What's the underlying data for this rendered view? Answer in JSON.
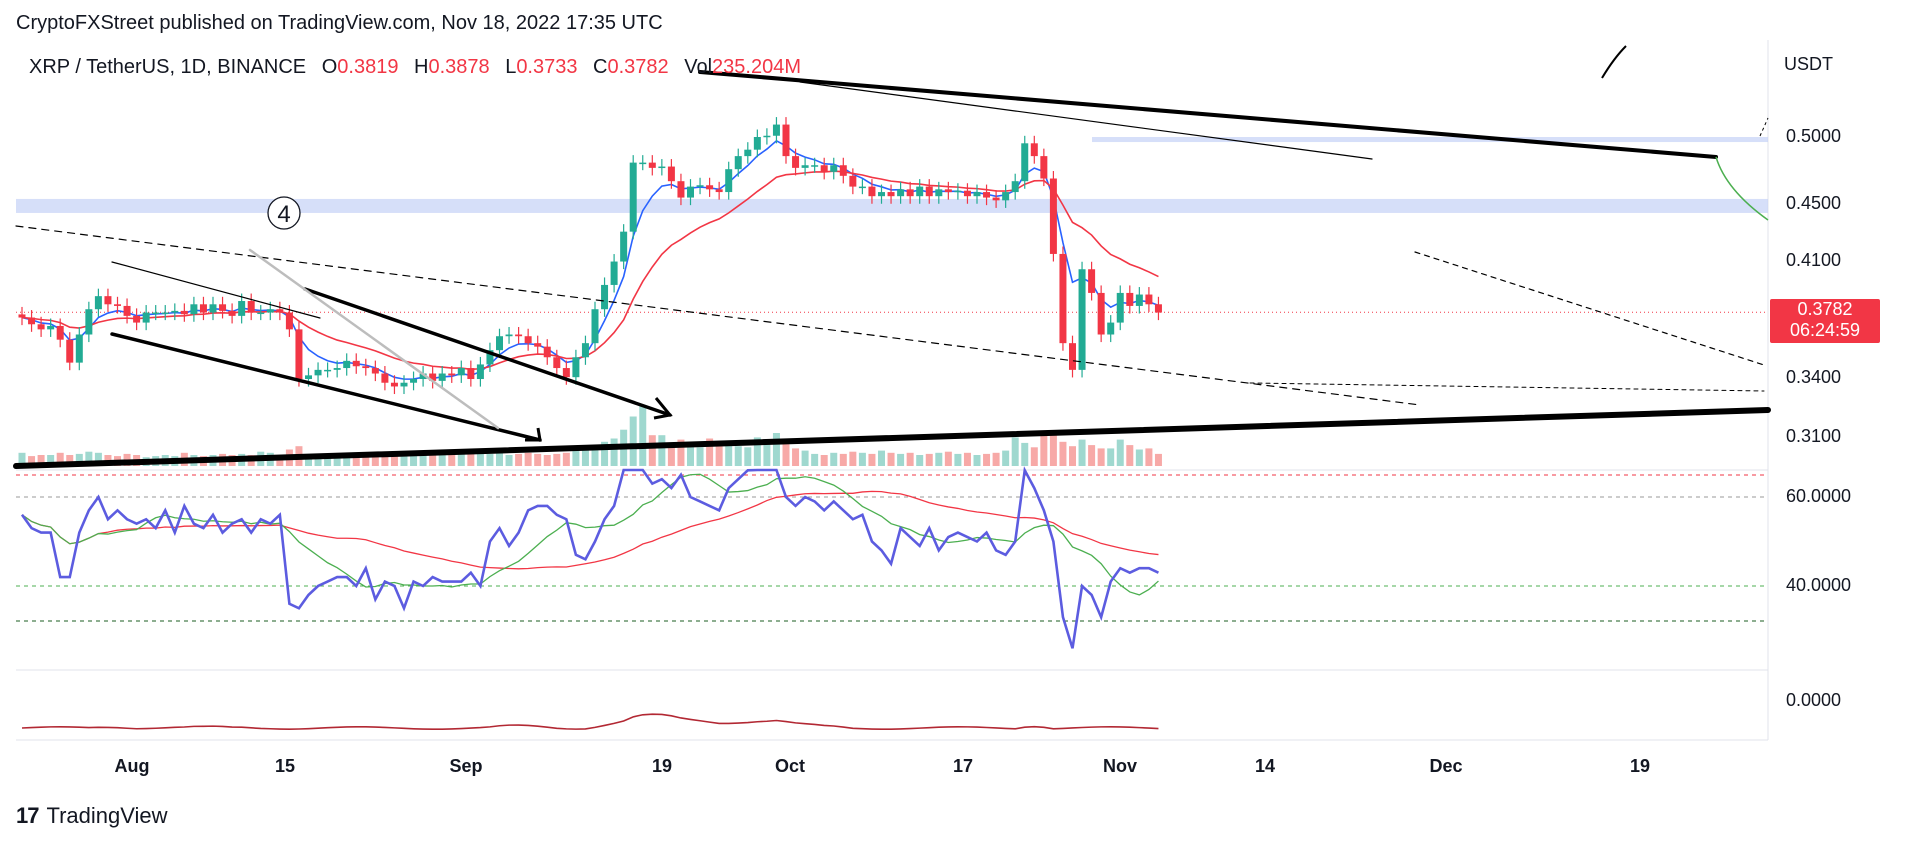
{
  "header": {
    "published_by": "CryptoFXStreet published on TradingView.com, Nov 18, 2022 17:35 UTC"
  },
  "legend": {
    "symbol": "XRP / TetherUS, 1D, BINANCE",
    "open_label": "O",
    "open": "0.3819",
    "high_label": "H",
    "high": "0.3878",
    "low_label": "L",
    "low": "0.3733",
    "close_label": "C",
    "close": "0.3782",
    "vol_label": "Vol",
    "vol": "235.204M"
  },
  "price_axis": {
    "currency": "USDT",
    "ticks": [
      "0.5000",
      "0.4500",
      "0.4100",
      "0.3400",
      "0.3100"
    ]
  },
  "rsi_axis": {
    "ticks": [
      "60.0000",
      "40.0000"
    ]
  },
  "osc_axis": {
    "ticks": [
      "0.0000"
    ]
  },
  "time_axis": {
    "ticks": [
      "Aug",
      "15",
      "Sep",
      "19",
      "Oct",
      "17",
      "Nov",
      "14",
      "Dec",
      "19"
    ]
  },
  "last_price": {
    "price": "0.3782",
    "countdown": "06:24:59"
  },
  "annotation": {
    "wave_label": "4"
  },
  "brand": {
    "name": "TradingView"
  },
  "colors": {
    "up": "#22ab94",
    "down": "#f23645",
    "ema_fast": "#2962ff",
    "ema_slow": "#f23645",
    "rsi": "#5c5ce0",
    "rsi_signal_fast": "#4caf50",
    "rsi_signal_slow": "#f23645",
    "support_zone": "#c5d1f6",
    "oscillator": "#b22833"
  },
  "chart_data": {
    "type": "candlestick",
    "symbol": "XRP / TetherUS",
    "timeframe": "1D",
    "exchange": "BINANCE",
    "x_ticks": [
      "Aug",
      "15",
      "Sep",
      "19",
      "Oct",
      "17",
      "Nov",
      "14",
      "Dec",
      "19"
    ],
    "y_ticks": [
      0.5,
      0.45,
      0.41,
      0.34,
      0.31
    ],
    "y_scale": "log",
    "last_close": 0.3782,
    "ohlc_last": {
      "open": 0.3819,
      "high": 0.3878,
      "low": 0.3733,
      "close": 0.3782
    },
    "support_zones": [
      [
        0.443,
        0.453
      ],
      [
        0.496,
        0.5
      ]
    ],
    "rsi_levels": [
      60,
      40
    ],
    "closes": [
      0.375,
      0.371,
      0.368,
      0.37,
      0.362,
      0.349,
      0.365,
      0.38,
      0.388,
      0.383,
      0.382,
      0.376,
      0.372,
      0.378,
      0.378,
      0.378,
      0.379,
      0.377,
      0.383,
      0.378,
      0.383,
      0.379,
      0.376,
      0.385,
      0.378,
      0.378,
      0.38,
      0.378,
      0.368,
      0.34,
      0.342,
      0.345,
      0.345,
      0.346,
      0.35,
      0.347,
      0.346,
      0.343,
      0.338,
      0.336,
      0.338,
      0.34,
      0.343,
      0.339,
      0.343,
      0.342,
      0.346,
      0.34,
      0.348,
      0.356,
      0.364,
      0.365,
      0.364,
      0.36,
      0.358,
      0.352,
      0.346,
      0.341,
      0.352,
      0.36,
      0.38,
      0.395,
      0.41,
      0.43,
      0.48,
      0.48,
      0.476,
      0.477,
      0.466,
      0.454,
      0.462,
      0.463,
      0.46,
      0.458,
      0.475,
      0.485,
      0.49,
      0.5,
      0.501,
      0.51,
      0.485,
      0.476,
      0.478,
      0.478,
      0.473,
      0.478,
      0.47,
      0.462,
      0.462,
      0.455,
      0.458,
      0.455,
      0.46,
      0.455,
      0.462,
      0.455,
      0.46,
      0.458,
      0.459,
      0.455,
      0.458,
      0.454,
      0.452,
      0.458,
      0.466,
      0.495,
      0.485,
      0.468,
      0.415,
      0.36,
      0.345,
      0.405,
      0.39,
      0.365,
      0.372,
      0.39,
      0.382,
      0.389,
      0.383,
      0.378
    ],
    "volumes": [
      0.12,
      0.09,
      0.1,
      0.1,
      0.12,
      0.1,
      0.11,
      0.13,
      0.12,
      0.1,
      0.09,
      0.11,
      0.1,
      0.08,
      0.09,
      0.1,
      0.09,
      0.12,
      0.1,
      0.09,
      0.1,
      0.11,
      0.1,
      0.11,
      0.1,
      0.13,
      0.12,
      0.1,
      0.15,
      0.18,
      0.1,
      0.09,
      0.1,
      0.09,
      0.1,
      0.11,
      0.1,
      0.1,
      0.09,
      0.1,
      0.12,
      0.11,
      0.1,
      0.11,
      0.12,
      0.1,
      0.13,
      0.14,
      0.12,
      0.11,
      0.12,
      0.1,
      0.11,
      0.12,
      0.11,
      0.1,
      0.11,
      0.12,
      0.14,
      0.16,
      0.18,
      0.22,
      0.25,
      0.33,
      0.45,
      0.55,
      0.28,
      0.28,
      0.2,
      0.24,
      0.19,
      0.17,
      0.25,
      0.21,
      0.19,
      0.18,
      0.17,
      0.26,
      0.21,
      0.3,
      0.22,
      0.16,
      0.14,
      0.11,
      0.1,
      0.12,
      0.11,
      0.13,
      0.12,
      0.11,
      0.14,
      0.12,
      0.11,
      0.12,
      0.1,
      0.11,
      0.12,
      0.13,
      0.11,
      0.12,
      0.1,
      0.11,
      0.12,
      0.14,
      0.26,
      0.21,
      0.17,
      0.3,
      0.32,
      0.22,
      0.18,
      0.24,
      0.19,
      0.16,
      0.16,
      0.24,
      0.19,
      0.15,
      0.16,
      0.11
    ],
    "rsi": [
      56,
      53,
      52,
      52,
      42,
      42,
      52,
      57,
      60,
      55,
      57,
      55,
      54,
      55,
      53,
      57,
      52,
      58,
      54,
      53,
      56,
      52,
      54,
      55,
      52,
      55,
      54,
      56,
      36,
      35,
      38,
      40,
      41,
      42,
      42,
      40,
      44,
      37,
      41,
      40,
      35,
      41,
      40,
      42,
      41,
      41,
      41,
      43,
      40,
      50,
      53,
      49,
      52,
      57,
      58,
      58,
      56,
      55,
      47,
      46,
      50,
      55,
      58,
      68,
      70,
      75,
      63,
      64,
      62,
      65,
      60,
      59,
      58,
      57,
      62,
      64,
      66,
      69,
      70,
      72,
      60,
      58,
      60,
      59,
      57,
      59,
      57,
      55,
      56,
      50,
      48,
      45,
      53,
      51,
      49,
      53,
      48,
      51,
      52,
      51,
      50,
      52,
      48,
      47,
      50,
      66,
      62,
      57,
      50,
      33,
      26,
      40,
      38,
      33,
      41,
      44,
      43,
      44,
      44,
      43
    ]
  }
}
